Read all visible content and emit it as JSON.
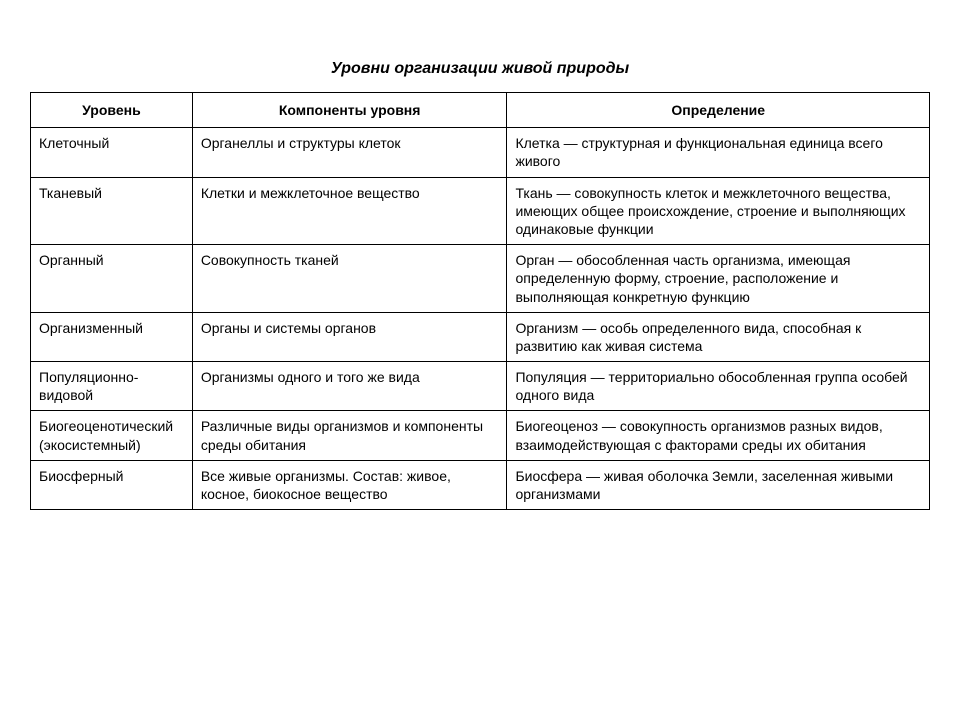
{
  "title": "Уровни организации живой природы",
  "table": {
    "columns": [
      "Уровень",
      "Компоненты уровня",
      "Определение"
    ],
    "rows": [
      [
        "Клеточный",
        "Органеллы и структуры клеток",
        "Клетка — структурная и функциональная единица всего живого"
      ],
      [
        "Тканевый",
        "Клетки и межклеточное вещество",
        "Ткань — совокупность клеток и межклеточ­ного вещества, имеющих общее происхож­дение, строение и выполняющих одинако­вые функции"
      ],
      [
        "Органный",
        "Совокупность тканей",
        "Орган — обособленная часть организма, имеющая определенную форму, строение, расположение и выполняющая конкретную функцию"
      ],
      [
        "Организменный",
        "Органы и системы органов",
        "Организм — особь определенного вида, способная к развитию как живая система"
      ],
      [
        "Популяционно-видовой",
        "Организмы одного и того же вида",
        "Популяция — территориально обособлен­ная группа особей одного вида"
      ],
      [
        "Биогеоценотиче­ский (экосистем­ный)",
        "Различные виды организмов и компоненты среды обитания",
        "Биогеоценоз — совокупность организмов разных видов, взаимодействующая с фак­торами среды их обитания"
      ],
      [
        "Биосферный",
        "Все живые организмы. Состав: жи­вое, косное, биокосное вещество",
        "Биосфера — живая оболочка Земли, заселенная живыми организмами"
      ]
    ],
    "border_color": "#000000",
    "background_color": "#ffffff",
    "header_fontweight": "bold",
    "cell_fontsize": 14,
    "title_fontsize": 16,
    "col_widths_pct": [
      18,
      35,
      47
    ]
  }
}
